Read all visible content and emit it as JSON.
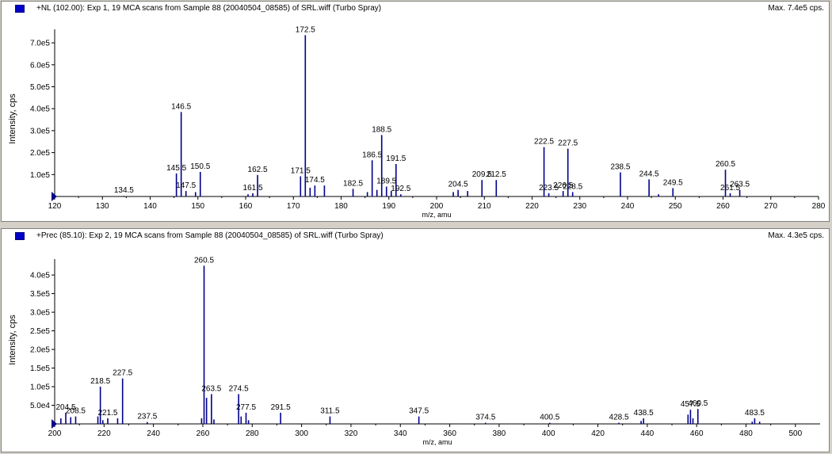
{
  "charts": [
    {
      "title": "+NL (102.00): Exp 1, 19 MCA scans from Sample 88 (20040504_08585) of SRL.wiff (Turbo Spray)",
      "max_label": "Max. 7.4e5 cps.",
      "series_color": "#00008b",
      "swatch_color": "#0000c8",
      "chart_data": {
        "type": "bar",
        "xlabel": "m/z, amu",
        "ylabel": "Intensity, cps",
        "xlim": [
          120,
          280
        ],
        "ylim": [
          0,
          740000
        ],
        "xticks": [
          120,
          130,
          140,
          150,
          160,
          170,
          180,
          190,
          200,
          210,
          220,
          230,
          240,
          250,
          260,
          270,
          280
        ],
        "yticks": [
          {
            "value": 100000,
            "label": "1.0e5"
          },
          {
            "value": 200000,
            "label": "2.0e5"
          },
          {
            "value": 300000,
            "label": "3.0e5"
          },
          {
            "value": 400000,
            "label": "4.0e5"
          },
          {
            "value": 500000,
            "label": "5.0e5"
          },
          {
            "value": 600000,
            "label": "6.0e5"
          },
          {
            "value": 700000,
            "label": "7.0e5"
          }
        ],
        "peaks": [
          {
            "x": 134.5,
            "y": 3000,
            "label": "134.5"
          },
          {
            "x": 145.5,
            "y": 105000,
            "label": "145.5"
          },
          {
            "x": 146.5,
            "y": 385000,
            "label": "146.5"
          },
          {
            "x": 147.5,
            "y": 25000,
            "label": "147.5"
          },
          {
            "x": 149.5,
            "y": 20000
          },
          {
            "x": 150.5,
            "y": 112000,
            "label": "150.5"
          },
          {
            "x": 160.5,
            "y": 10000
          },
          {
            "x": 161.5,
            "y": 15000,
            "label": "161.5"
          },
          {
            "x": 162.5,
            "y": 98000,
            "label": "162.5"
          },
          {
            "x": 171.5,
            "y": 92000,
            "label": "171.5"
          },
          {
            "x": 172.5,
            "y": 735000,
            "label": "172.5"
          },
          {
            "x": 173.5,
            "y": 40000
          },
          {
            "x": 174.5,
            "y": 50000,
            "label": "174.5"
          },
          {
            "x": 176.5,
            "y": 50000
          },
          {
            "x": 182.5,
            "y": 35000,
            "label": "182.5"
          },
          {
            "x": 185.5,
            "y": 20000
          },
          {
            "x": 186.5,
            "y": 165000,
            "label": "186.5"
          },
          {
            "x": 187.5,
            "y": 30000
          },
          {
            "x": 188.5,
            "y": 280000,
            "label": "188.5"
          },
          {
            "x": 189.5,
            "y": 45000,
            "label": "189.5"
          },
          {
            "x": 190.5,
            "y": 25000
          },
          {
            "x": 191.5,
            "y": 148000,
            "label": "191.5"
          },
          {
            "x": 192.5,
            "y": 10000,
            "label": "192.5"
          },
          {
            "x": 203.5,
            "y": 20000
          },
          {
            "x": 204.5,
            "y": 30000,
            "label": "204.5"
          },
          {
            "x": 206.5,
            "y": 25000
          },
          {
            "x": 209.5,
            "y": 75000,
            "label": "209.5"
          },
          {
            "x": 212.5,
            "y": 75000,
            "label": "212.5"
          },
          {
            "x": 222.5,
            "y": 225000,
            "label": "222.5"
          },
          {
            "x": 223.5,
            "y": 15000,
            "label": "223.5"
          },
          {
            "x": 226.5,
            "y": 25000,
            "label": "226.5"
          },
          {
            "x": 227.5,
            "y": 218000,
            "label": "227.5"
          },
          {
            "x": 228.5,
            "y": 20000,
            "label": "228.5"
          },
          {
            "x": 238.5,
            "y": 110000,
            "label": "238.5"
          },
          {
            "x": 244.5,
            "y": 78000,
            "label": "244.5"
          },
          {
            "x": 246.5,
            "y": 10000
          },
          {
            "x": 249.5,
            "y": 38000,
            "label": "249.5"
          },
          {
            "x": 260.5,
            "y": 122000,
            "label": "260.5"
          },
          {
            "x": 261.5,
            "y": 15000,
            "label": "261.5"
          },
          {
            "x": 263.5,
            "y": 30000,
            "label": "263.5"
          }
        ]
      }
    },
    {
      "title": "+Prec (85.10): Exp 2, 19 MCA scans from Sample 88 (20040504_08585) of SRL.wiff (Turbo Spray)",
      "max_label": "Max. 4.3e5 cps.",
      "series_color": "#00008b",
      "swatch_color": "#0000c8",
      "chart_data": {
        "type": "bar",
        "xlabel": "m/z, amu",
        "ylabel": "Intensity, cps",
        "xlim": [
          200,
          510
        ],
        "ylim": [
          0,
          430000
        ],
        "xticks": [
          200,
          220,
          240,
          260,
          280,
          300,
          320,
          340,
          360,
          380,
          400,
          420,
          440,
          460,
          480,
          500
        ],
        "yticks": [
          {
            "value": 50000,
            "label": "5.0e4"
          },
          {
            "value": 100000,
            "label": "1.0e5"
          },
          {
            "value": 150000,
            "label": "1.5e5"
          },
          {
            "value": 200000,
            "label": "2.0e5"
          },
          {
            "value": 250000,
            "label": "2.5e5"
          },
          {
            "value": 300000,
            "label": "3.0e5"
          },
          {
            "value": 350000,
            "label": "3.5e5"
          },
          {
            "value": 400000,
            "label": "4.0e5"
          }
        ],
        "peaks": [
          {
            "x": 202.5,
            "y": 15000
          },
          {
            "x": 204.5,
            "y": 30000,
            "label": "204.5"
          },
          {
            "x": 206.5,
            "y": 18000
          },
          {
            "x": 208.5,
            "y": 20000,
            "label": "208.5"
          },
          {
            "x": 217.5,
            "y": 20000
          },
          {
            "x": 218.5,
            "y": 100000,
            "label": "218.5"
          },
          {
            "x": 219.5,
            "y": 10000
          },
          {
            "x": 221.5,
            "y": 15000,
            "label": "221.5"
          },
          {
            "x": 225.5,
            "y": 15000
          },
          {
            "x": 227.5,
            "y": 122000,
            "label": "227.5"
          },
          {
            "x": 237.5,
            "y": 5000,
            "label": "237.5"
          },
          {
            "x": 259.5,
            "y": 15000
          },
          {
            "x": 260.5,
            "y": 425000,
            "label": "260.5"
          },
          {
            "x": 261.5,
            "y": 70000
          },
          {
            "x": 263.5,
            "y": 80000,
            "label": "263.5"
          },
          {
            "x": 264.5,
            "y": 12000
          },
          {
            "x": 274.5,
            "y": 80000,
            "label": "274.5"
          },
          {
            "x": 275.5,
            "y": 20000
          },
          {
            "x": 277.5,
            "y": 30000,
            "label": "277.5"
          },
          {
            "x": 278.5,
            "y": 10000
          },
          {
            "x": 291.5,
            "y": 30000,
            "label": "291.5"
          },
          {
            "x": 311.5,
            "y": 20000,
            "label": "311.5"
          },
          {
            "x": 347.5,
            "y": 20000,
            "label": "347.5"
          },
          {
            "x": 374.5,
            "y": 3000,
            "label": "374.5"
          },
          {
            "x": 400.5,
            "y": 3000,
            "label": "400.5"
          },
          {
            "x": 428.5,
            "y": 3000,
            "label": "428.5"
          },
          {
            "x": 437.5,
            "y": 8000
          },
          {
            "x": 438.5,
            "y": 15000,
            "label": "438.5"
          },
          {
            "x": 456.5,
            "y": 25000
          },
          {
            "x": 457.5,
            "y": 38000,
            "label": "457.5"
          },
          {
            "x": 458.5,
            "y": 15000
          },
          {
            "x": 460.5,
            "y": 40000,
            "label": "460.5"
          },
          {
            "x": 482.5,
            "y": 6000
          },
          {
            "x": 483.5,
            "y": 15000,
            "label": "483.5"
          },
          {
            "x": 485.5,
            "y": 6000
          }
        ]
      }
    }
  ]
}
